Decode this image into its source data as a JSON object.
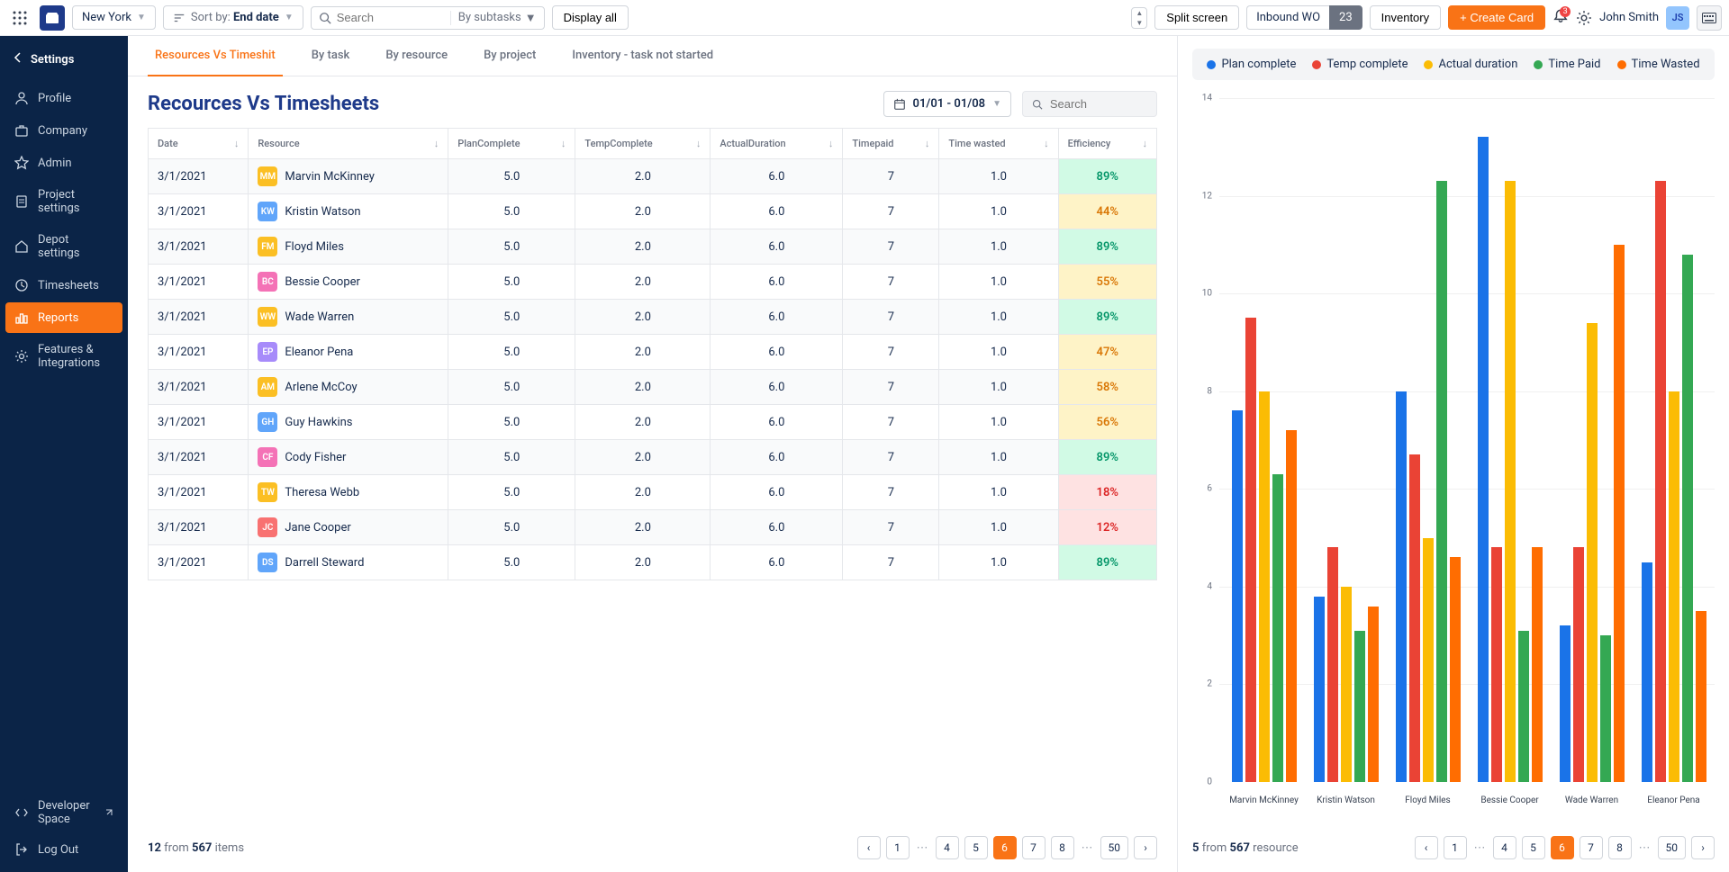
{
  "topbar": {
    "location": "New York",
    "sort_prefix": "Sort by: ",
    "sort_value": "End date",
    "search_placeholder": "Search",
    "subtasks_label": "By subtasks",
    "display_all": "Display all",
    "split_screen": "Split screen",
    "inbound_label": "Inbound WO",
    "inbound_count": "23",
    "inventory": "Inventory",
    "create_card": "+ Create Card",
    "notif_count": "3",
    "user_name": "John Smith"
  },
  "sidebar": {
    "title": "Settings",
    "items": [
      {
        "label": "Profile",
        "icon": "user"
      },
      {
        "label": "Company",
        "icon": "briefcase"
      },
      {
        "label": "Admin",
        "icon": "star"
      },
      {
        "label": "Project settings",
        "icon": "file"
      },
      {
        "label": "Depot settings",
        "icon": "home"
      },
      {
        "label": "Timesheets",
        "icon": "clock"
      },
      {
        "label": "Reports",
        "icon": "bar",
        "active": true
      },
      {
        "label": "Features & Integrations",
        "icon": "gear"
      }
    ],
    "dev_space": "Developer Space",
    "logout": "Log Out"
  },
  "tabs": [
    {
      "label": "Resources Vs Timeshit",
      "active": true
    },
    {
      "label": "By task"
    },
    {
      "label": "By resource"
    },
    {
      "label": "By project"
    },
    {
      "label": "Inventory - task not started"
    }
  ],
  "page_title": "Recources Vs Timesheets",
  "date_range": "01/01 - 01/08",
  "content_search_placeholder": "Search",
  "table": {
    "columns": [
      "Date",
      "Resource",
      "PlanComplete",
      "TempComplete",
      "ActualDuration",
      "Timepaid",
      "Time wasted",
      "Efficiency"
    ],
    "rows": [
      {
        "date": "3/1/2021",
        "resource": "Marvin McKinney",
        "av_bg": "#fbbf24",
        "pc": "5.0",
        "tc": "2.0",
        "ad": "6.0",
        "tp": "7",
        "tw": "1.0",
        "eff": "89%",
        "eff_bg": "#d1fae5",
        "eff_color": "#059669"
      },
      {
        "date": "3/1/2021",
        "resource": "Kristin Watson",
        "av_bg": "#60a5fa",
        "pc": "5.0",
        "tc": "2.0",
        "ad": "6.0",
        "tp": "7",
        "tw": "1.0",
        "eff": "44%",
        "eff_bg": "#fef3c7",
        "eff_color": "#d97706"
      },
      {
        "date": "3/1/2021",
        "resource": "Floyd Miles",
        "av_bg": "#fbbf24",
        "pc": "5.0",
        "tc": "2.0",
        "ad": "6.0",
        "tp": "7",
        "tw": "1.0",
        "eff": "89%",
        "eff_bg": "#d1fae5",
        "eff_color": "#059669"
      },
      {
        "date": "3/1/2021",
        "resource": "Bessie Cooper",
        "av_bg": "#f472b6",
        "pc": "5.0",
        "tc": "2.0",
        "ad": "6.0",
        "tp": "7",
        "tw": "1.0",
        "eff": "55%",
        "eff_bg": "#fef3c7",
        "eff_color": "#d97706"
      },
      {
        "date": "3/1/2021",
        "resource": "Wade Warren",
        "av_bg": "#fbbf24",
        "pc": "5.0",
        "tc": "2.0",
        "ad": "6.0",
        "tp": "7",
        "tw": "1.0",
        "eff": "89%",
        "eff_bg": "#d1fae5",
        "eff_color": "#059669"
      },
      {
        "date": "3/1/2021",
        "resource": "Eleanor Pena",
        "av_bg": "#a78bfa",
        "pc": "5.0",
        "tc": "2.0",
        "ad": "6.0",
        "tp": "7",
        "tw": "1.0",
        "eff": "47%",
        "eff_bg": "#fef3c7",
        "eff_color": "#d97706"
      },
      {
        "date": "3/1/2021",
        "resource": "Arlene McCoy",
        "av_bg": "#fbbf24",
        "pc": "5.0",
        "tc": "2.0",
        "ad": "6.0",
        "tp": "7",
        "tw": "1.0",
        "eff": "58%",
        "eff_bg": "#fef3c7",
        "eff_color": "#d97706"
      },
      {
        "date": "3/1/2021",
        "resource": "Guy Hawkins",
        "av_bg": "#60a5fa",
        "pc": "5.0",
        "tc": "2.0",
        "ad": "6.0",
        "tp": "7",
        "tw": "1.0",
        "eff": "56%",
        "eff_bg": "#fef3c7",
        "eff_color": "#d97706"
      },
      {
        "date": "3/1/2021",
        "resource": "Cody Fisher",
        "av_bg": "#f472b6",
        "pc": "5.0",
        "tc": "2.0",
        "ad": "6.0",
        "tp": "7",
        "tw": "1.0",
        "eff": "89%",
        "eff_bg": "#d1fae5",
        "eff_color": "#059669"
      },
      {
        "date": "3/1/2021",
        "resource": "Theresa Webb",
        "av_bg": "#fbbf24",
        "pc": "5.0",
        "tc": "2.0",
        "ad": "6.0",
        "tp": "7",
        "tw": "1.0",
        "eff": "18%",
        "eff_bg": "#fee2e2",
        "eff_color": "#dc2626"
      },
      {
        "date": "3/1/2021",
        "resource": "Jane Cooper",
        "av_bg": "#f87171",
        "pc": "5.0",
        "tc": "2.0",
        "ad": "6.0",
        "tp": "7",
        "tw": "1.0",
        "eff": "12%",
        "eff_bg": "#fee2e2",
        "eff_color": "#dc2626"
      },
      {
        "date": "3/1/2021",
        "resource": "Darrell Steward",
        "av_bg": "#60a5fa",
        "pc": "5.0",
        "tc": "2.0",
        "ad": "6.0",
        "tp": "7",
        "tw": "1.0",
        "eff": "89%",
        "eff_bg": "#d1fae5",
        "eff_color": "#059669"
      }
    ]
  },
  "left_pager": {
    "shown": "12",
    "total": "567",
    "items_word": "items",
    "pages": [
      "1",
      "...",
      "4",
      "5",
      "6",
      "7",
      "8",
      "...",
      "50"
    ],
    "active": "6"
  },
  "chart": {
    "legend": [
      {
        "label": "Plan complete",
        "color": "#1a73e8"
      },
      {
        "label": "Temp complete",
        "color": "#ea4335"
      },
      {
        "label": "Actual duration",
        "color": "#fbbc04"
      },
      {
        "label": "Time Paid",
        "color": "#34a853"
      },
      {
        "label": "Time Wasted",
        "color": "#ff6d01"
      }
    ],
    "y_ticks": [
      0,
      2,
      4,
      6,
      8,
      10,
      12,
      14
    ],
    "y_max": 14,
    "series_colors": [
      "#1a73e8",
      "#ea4335",
      "#fbbc04",
      "#34a853",
      "#ff6d01"
    ],
    "groups": [
      {
        "label": "Marvin McKinney",
        "values": [
          7.6,
          9.5,
          8.0,
          6.3,
          7.2
        ]
      },
      {
        "label": "Kristin Watson",
        "values": [
          3.8,
          4.8,
          4.0,
          3.1,
          3.6
        ]
      },
      {
        "label": "Floyd Miles",
        "values": [
          8.0,
          6.7,
          5.0,
          12.3,
          4.6
        ]
      },
      {
        "label": "Bessie Cooper",
        "values": [
          13.2,
          4.8,
          12.3,
          3.1,
          4.8
        ]
      },
      {
        "label": "Wade Warren",
        "values": [
          3.2,
          4.8,
          9.4,
          3.0,
          11.0
        ]
      },
      {
        "label": "Eleanor Pena",
        "values": [
          4.5,
          12.3,
          8.0,
          10.8,
          3.5
        ]
      }
    ]
  },
  "right_pager": {
    "shown": "5",
    "total": "567",
    "items_word": "resource",
    "pages": [
      "1",
      "...",
      "4",
      "5",
      "6",
      "7",
      "8",
      "...",
      "50"
    ],
    "active": "6"
  }
}
